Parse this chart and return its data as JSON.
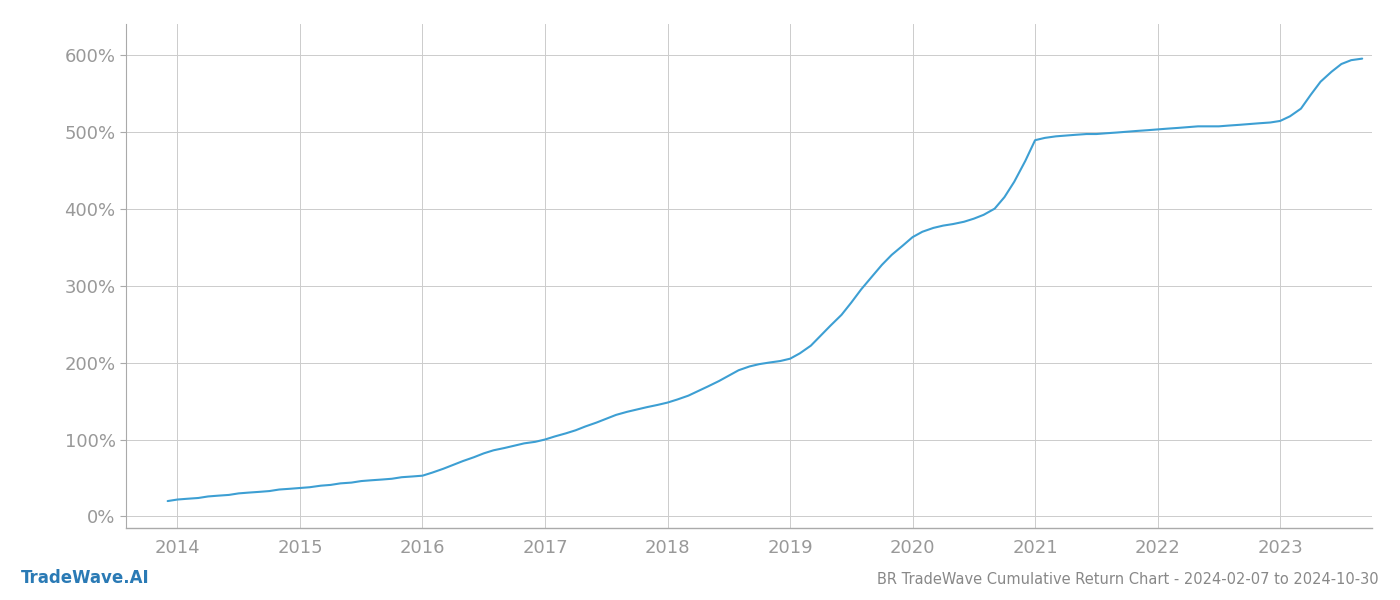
{
  "title": "BR TradeWave Cumulative Return Chart - 2024-02-07 to 2024-10-30",
  "watermark": "TradeWave.AI",
  "line_color": "#3d9fd3",
  "background_color": "#ffffff",
  "grid_color": "#cccccc",
  "axis_label_color": "#999999",
  "title_color": "#888888",
  "watermark_color": "#2a7ab5",
  "x_years": [
    2014,
    2015,
    2016,
    2017,
    2018,
    2019,
    2020,
    2021,
    2022,
    2023
  ],
  "y_ticks": [
    0,
    100,
    200,
    300,
    400,
    500,
    600
  ],
  "xlim_start": 2013.58,
  "xlim_end": 2023.75,
  "ylim_bottom": -15,
  "ylim_top": 640,
  "x_data": [
    2013.92,
    2014.0,
    2014.08,
    2014.17,
    2014.25,
    2014.33,
    2014.42,
    2014.5,
    2014.58,
    2014.67,
    2014.75,
    2014.83,
    2014.92,
    2015.0,
    2015.08,
    2015.17,
    2015.25,
    2015.33,
    2015.42,
    2015.5,
    2015.58,
    2015.67,
    2015.75,
    2015.83,
    2015.92,
    2016.0,
    2016.08,
    2016.17,
    2016.25,
    2016.33,
    2016.42,
    2016.5,
    2016.58,
    2016.67,
    2016.75,
    2016.83,
    2016.92,
    2017.0,
    2017.08,
    2017.17,
    2017.25,
    2017.33,
    2017.42,
    2017.5,
    2017.58,
    2017.67,
    2017.75,
    2017.83,
    2017.92,
    2018.0,
    2018.08,
    2018.17,
    2018.25,
    2018.33,
    2018.42,
    2018.5,
    2018.58,
    2018.67,
    2018.75,
    2018.83,
    2018.92,
    2019.0,
    2019.08,
    2019.17,
    2019.25,
    2019.33,
    2019.42,
    2019.5,
    2019.58,
    2019.67,
    2019.75,
    2019.83,
    2019.92,
    2020.0,
    2020.08,
    2020.17,
    2020.25,
    2020.33,
    2020.42,
    2020.5,
    2020.58,
    2020.67,
    2020.75,
    2020.83,
    2020.92,
    2021.0,
    2021.08,
    2021.17,
    2021.25,
    2021.33,
    2021.42,
    2021.5,
    2021.58,
    2021.67,
    2021.75,
    2021.83,
    2021.92,
    2022.0,
    2022.08,
    2022.17,
    2022.25,
    2022.33,
    2022.42,
    2022.5,
    2022.58,
    2022.67,
    2022.75,
    2022.83,
    2022.92,
    2023.0,
    2023.08,
    2023.17,
    2023.25,
    2023.33,
    2023.42,
    2023.5,
    2023.58,
    2023.67
  ],
  "y_data": [
    20,
    22,
    23,
    24,
    26,
    27,
    28,
    30,
    31,
    32,
    33,
    35,
    36,
    37,
    38,
    40,
    41,
    43,
    44,
    46,
    47,
    48,
    49,
    51,
    52,
    53,
    57,
    62,
    67,
    72,
    77,
    82,
    86,
    89,
    92,
    95,
    97,
    100,
    104,
    108,
    112,
    117,
    122,
    127,
    132,
    136,
    139,
    142,
    145,
    148,
    152,
    157,
    163,
    169,
    176,
    183,
    190,
    195,
    198,
    200,
    202,
    205,
    212,
    222,
    235,
    248,
    262,
    278,
    295,
    312,
    327,
    340,
    352,
    363,
    370,
    375,
    378,
    380,
    383,
    387,
    392,
    400,
    415,
    435,
    462,
    489,
    492,
    494,
    495,
    496,
    497,
    497,
    498,
    499,
    500,
    501,
    502,
    503,
    504,
    505,
    506,
    507,
    507,
    507,
    508,
    509,
    510,
    511,
    512,
    514,
    520,
    530,
    548,
    565,
    578,
    588,
    593,
    595
  ],
  "line_width": 1.5
}
